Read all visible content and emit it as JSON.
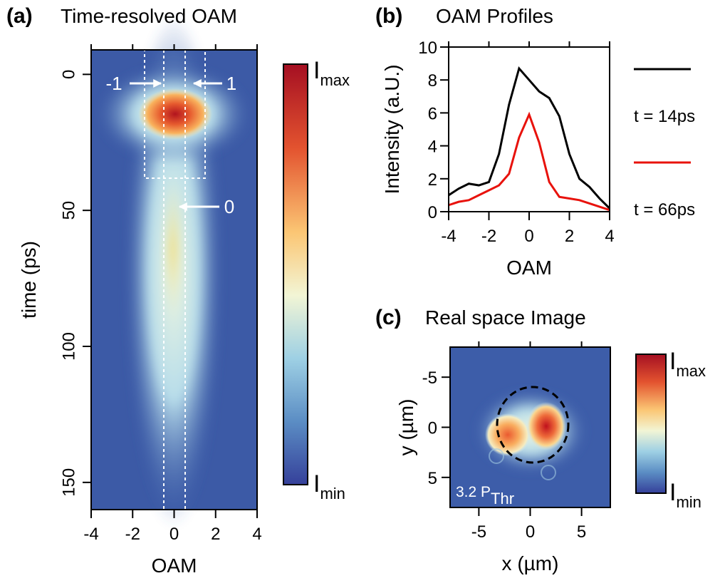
{
  "chart_data": [
    {
      "type": "heatmap",
      "panel": "(a)",
      "title": "Time-resolved OAM",
      "xlabel": "OAM",
      "ylabel": "time (ps)",
      "xlim": [
        -4,
        4
      ],
      "xticks": [
        -4,
        -2,
        0,
        2,
        4
      ],
      "ylim": [
        -9,
        160
      ],
      "yticks": [
        0,
        50,
        100,
        150
      ],
      "y_reversed": true,
      "annotations": [
        "-1",
        "1",
        "0"
      ],
      "colorbar": {
        "max": {
          "base": "I",
          "sub": "max"
        },
        "min": {
          "base": "I",
          "sub": "min"
        }
      }
    },
    {
      "type": "line",
      "panel": "(b)",
      "title": "OAM Profiles",
      "xlabel": "OAM",
      "ylabel": "Intensity (a.U.)",
      "xlim": [
        -4,
        4
      ],
      "xticks": [
        -4,
        -2,
        0,
        2,
        4
      ],
      "ylim": [
        0,
        10
      ],
      "yticks": [
        0,
        2,
        4,
        6,
        8,
        10
      ],
      "x": [
        -4,
        -3.5,
        -3,
        -2.5,
        -2,
        -1.5,
        -1,
        -0.5,
        0,
        0.5,
        1,
        1.5,
        2,
        2.5,
        3,
        3.5,
        4
      ],
      "series": [
        {
          "name": "t = 14ps",
          "color": "#000000",
          "values": [
            1.0,
            1.4,
            1.7,
            1.6,
            1.8,
            3.5,
            6.5,
            8.7,
            8.0,
            7.3,
            6.9,
            5.8,
            3.5,
            2.0,
            1.5,
            0.8,
            0.2
          ]
        },
        {
          "name": "t = 66ps",
          "color": "#e8120c",
          "values": [
            0.4,
            0.6,
            0.7,
            1.0,
            1.3,
            1.6,
            2.3,
            4.5,
            5.9,
            4.2,
            1.8,
            0.9,
            0.8,
            0.7,
            0.5,
            0.3,
            0.1
          ]
        }
      ]
    },
    {
      "type": "heatmap",
      "panel": "(c)",
      "title": "Real space Image",
      "xlabel": "x (µm)",
      "ylabel": "y (µm)",
      "xlim": [
        -7.8,
        7.8
      ],
      "xticks": [
        -5,
        0,
        5
      ],
      "ylim": [
        -8,
        8
      ],
      "yticks": [
        -5,
        0,
        5
      ],
      "y_reversed": true,
      "annotations": [
        {
          "base": "3.2 P",
          "sub": "Thr"
        }
      ],
      "colorbar": {
        "max": {
          "base": "I",
          "sub": "max"
        },
        "min": {
          "base": "I",
          "sub": "min"
        }
      }
    }
  ]
}
